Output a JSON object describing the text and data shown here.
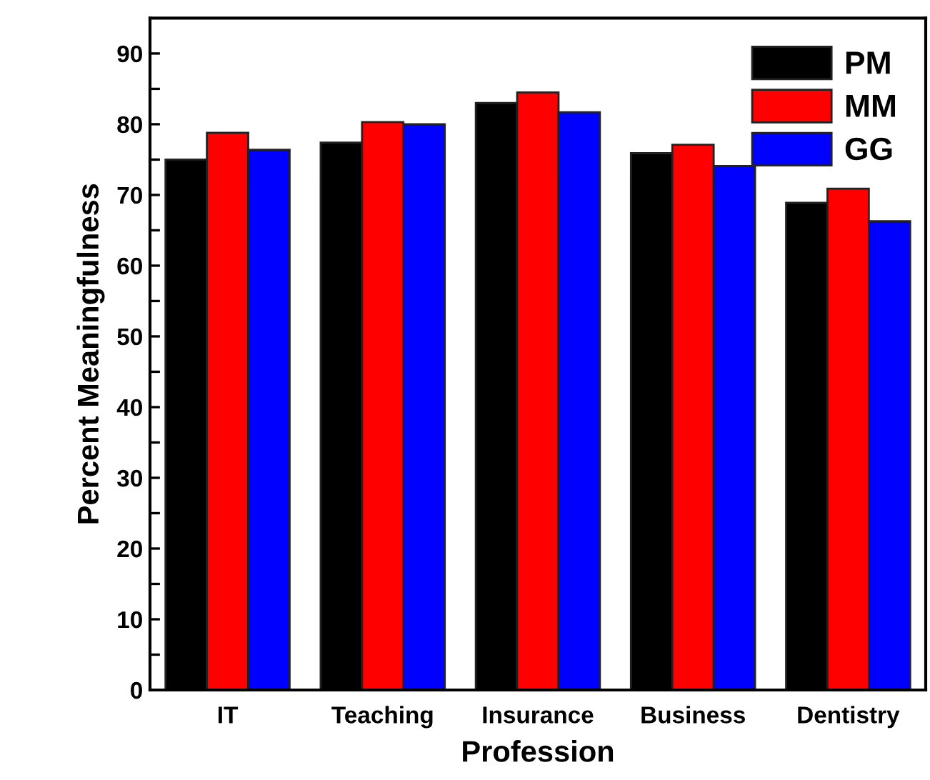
{
  "chart_data": {
    "type": "bar",
    "xlabel": "Profession",
    "ylabel": "Percent Meaningfulness",
    "categories": [
      "IT",
      "Teaching",
      "Insurance",
      "Business",
      "Dentistry"
    ],
    "series": [
      {
        "name": "PM",
        "color": "#000000",
        "values": [
          75,
          77.4,
          83,
          75.9,
          68.9
        ]
      },
      {
        "name": "MM",
        "color": "#ff0000",
        "values": [
          78.8,
          80.3,
          84.5,
          77.1,
          70.9
        ]
      },
      {
        "name": "GG",
        "color": "#0000ff",
        "values": [
          76.4,
          80,
          81.7,
          74.1,
          66.3
        ]
      }
    ],
    "ylim": [
      0,
      95
    ],
    "yticks": [
      0,
      {
        "value": 5,
        "label": null
      },
      10,
      {
        "value": 15,
        "label": null
      },
      20,
      {
        "value": 25,
        "label": null
      },
      30,
      {
        "value": 35,
        "label": null
      },
      40,
      {
        "value": 45,
        "label": null
      },
      50,
      {
        "value": 55,
        "label": null
      },
      60,
      {
        "value": 65,
        "label": null
      },
      70,
      {
        "value": 75,
        "label": null
      },
      80,
      {
        "value": 85,
        "label": null
      },
      90
    ],
    "legend": "top right",
    "grid": false
  }
}
